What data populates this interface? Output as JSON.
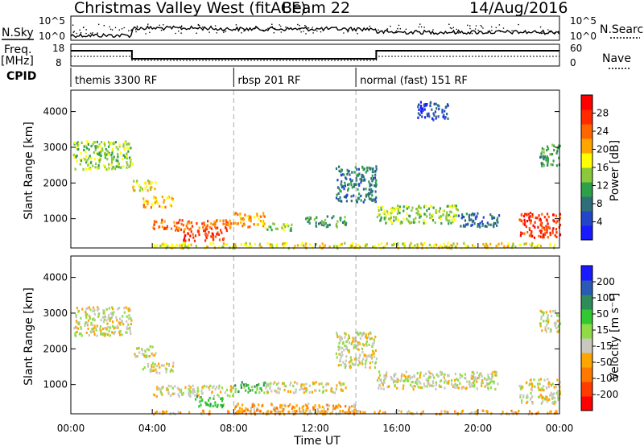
{
  "header": {
    "title": "Christmas Valley West (fitACF)",
    "beam": "Beam 22",
    "date": "14/Aug/2016"
  },
  "left_labels": {
    "nsky": "N.Sky",
    "freq_top": "Freq.",
    "freq_bottom": "[MHz]",
    "cpid": "CPID"
  },
  "right_labels": {
    "nsearch": "N.Search",
    "nave": "Nave"
  },
  "noise_ticks": {
    "left_top": "10^5",
    "left_bottom": "10^0",
    "right_top": "10^5",
    "right_bottom": "10^0"
  },
  "freq_ticks": {
    "left_top": "18",
    "left_bottom": "8",
    "right_top": "60",
    "right_bottom": "0"
  },
  "cpid_segments": [
    {
      "label": "themis 3300 RF",
      "start_h": 0,
      "end_h": 8
    },
    {
      "label": "rbsp 201 RF",
      "start_h": 8,
      "end_h": 14
    },
    {
      "label": "normal (fast) 151 RF",
      "start_h": 14,
      "end_h": 24
    }
  ],
  "chart_data": [
    {
      "type": "heatmap",
      "name": "power",
      "ylabel": "Slant Range [km]",
      "ylim": [
        180,
        4600
      ],
      "yticks": [
        1000,
        2000,
        3000,
        4000
      ],
      "xlim": [
        0,
        24
      ],
      "colorbar": {
        "label": "Power [dB]",
        "ticks": [
          "4",
          "8",
          "12",
          "16",
          "20",
          "24",
          "28"
        ],
        "colors": [
          "#1a1aff",
          "#2346c8",
          "#2f6f7a",
          "#2fa04a",
          "#8cc83c",
          "#ffff00",
          "#ffa500",
          "#ff6600",
          "#ff2a00",
          "#ff0000"
        ]
      },
      "regions": [
        {
          "t0": 0.1,
          "t1": 3.0,
          "r0": 2400,
          "r1": 3200,
          "level": 4
        },
        {
          "t0": 3.0,
          "t1": 4.2,
          "r0": 1800,
          "r1": 2100,
          "level": 5
        },
        {
          "t0": 3.5,
          "t1": 5.0,
          "r0": 1350,
          "r1": 1650,
          "level": 6
        },
        {
          "t0": 4.0,
          "t1": 8.0,
          "r0": 700,
          "r1": 1000,
          "level": 7
        },
        {
          "t0": 5.5,
          "t1": 7.5,
          "r0": 400,
          "r1": 700,
          "level": 8
        },
        {
          "t0": 8.0,
          "t1": 9.5,
          "r0": 800,
          "r1": 1200,
          "level": 6
        },
        {
          "t0": 9.5,
          "t1": 11.0,
          "r0": 700,
          "r1": 900,
          "level": 4
        },
        {
          "t0": 11.5,
          "t1": 13.5,
          "r0": 800,
          "r1": 1100,
          "level": 3
        },
        {
          "t0": 13.0,
          "t1": 15.0,
          "r0": 1500,
          "r1": 2500,
          "level": 2
        },
        {
          "t0": 15.0,
          "t1": 19.0,
          "r0": 900,
          "r1": 1400,
          "level": 4
        },
        {
          "t0": 19.0,
          "t1": 21.0,
          "r0": 800,
          "r1": 1200,
          "level": 2
        },
        {
          "t0": 22.0,
          "t1": 24.0,
          "r0": 500,
          "r1": 1200,
          "level": 8
        },
        {
          "t0": 23.0,
          "t1": 24.0,
          "r0": 2500,
          "r1": 3100,
          "level": 3
        },
        {
          "t0": 17.0,
          "t1": 18.5,
          "r0": 3800,
          "r1": 4300,
          "level": 1
        },
        {
          "t0": 4.0,
          "t1": 24.0,
          "r0": 200,
          "r1": 350,
          "level": 5
        }
      ]
    },
    {
      "type": "heatmap",
      "name": "velocity",
      "ylabel": "Slant Range [km]",
      "xlabel": "Time UT",
      "ylim": [
        180,
        4600
      ],
      "yticks": [
        1000,
        2000,
        3000,
        4000
      ],
      "xlim": [
        0,
        24
      ],
      "xticks": [
        "00:00",
        "04:00",
        "08:00",
        "12:00",
        "16:00",
        "20:00",
        "00:00"
      ],
      "colorbar": {
        "label": "Velocity [m s⁻¹]",
        "ticks": [
          "200",
          "100",
          "50",
          "15",
          "-15",
          "-50",
          "-100",
          "-200"
        ],
        "colors": [
          "#1a1aff",
          "#2a5ab4",
          "#2f8c5a",
          "#32c832",
          "#90dc46",
          "#c8c8be",
          "#ffa500",
          "#ff7800",
          "#ff3c00",
          "#ff0000"
        ]
      },
      "regions": [
        {
          "t0": 0.1,
          "t1": 3.0,
          "r0": 2400,
          "r1": 3200,
          "level": 5
        },
        {
          "t0": 3.0,
          "t1": 4.2,
          "r0": 1800,
          "r1": 2100,
          "level": 5
        },
        {
          "t0": 3.5,
          "t1": 5.0,
          "r0": 1350,
          "r1": 1650,
          "level": 5
        },
        {
          "t0": 4.0,
          "t1": 8.0,
          "r0": 700,
          "r1": 1000,
          "level": 5
        },
        {
          "t0": 6.0,
          "t1": 7.5,
          "r0": 400,
          "r1": 700,
          "level": 3
        },
        {
          "t0": 8.0,
          "t1": 9.5,
          "r0": 800,
          "r1": 1100,
          "level": 3
        },
        {
          "t0": 9.5,
          "t1": 13.5,
          "r0": 800,
          "r1": 1100,
          "level": 5
        },
        {
          "t0": 13.0,
          "t1": 15.0,
          "r0": 1500,
          "r1": 2500,
          "level": 5
        },
        {
          "t0": 15.0,
          "t1": 21.0,
          "r0": 900,
          "r1": 1400,
          "level": 5
        },
        {
          "t0": 22.0,
          "t1": 24.0,
          "r0": 500,
          "r1": 1200,
          "level": 5
        },
        {
          "t0": 23.0,
          "t1": 24.0,
          "r0": 2500,
          "r1": 3100,
          "level": 5
        },
        {
          "t0": 8.0,
          "t1": 14.0,
          "r0": 200,
          "r1": 500,
          "level": 6
        },
        {
          "t0": 4.0,
          "t1": 24.0,
          "r0": 200,
          "r1": 300,
          "level": 6
        }
      ]
    }
  ]
}
